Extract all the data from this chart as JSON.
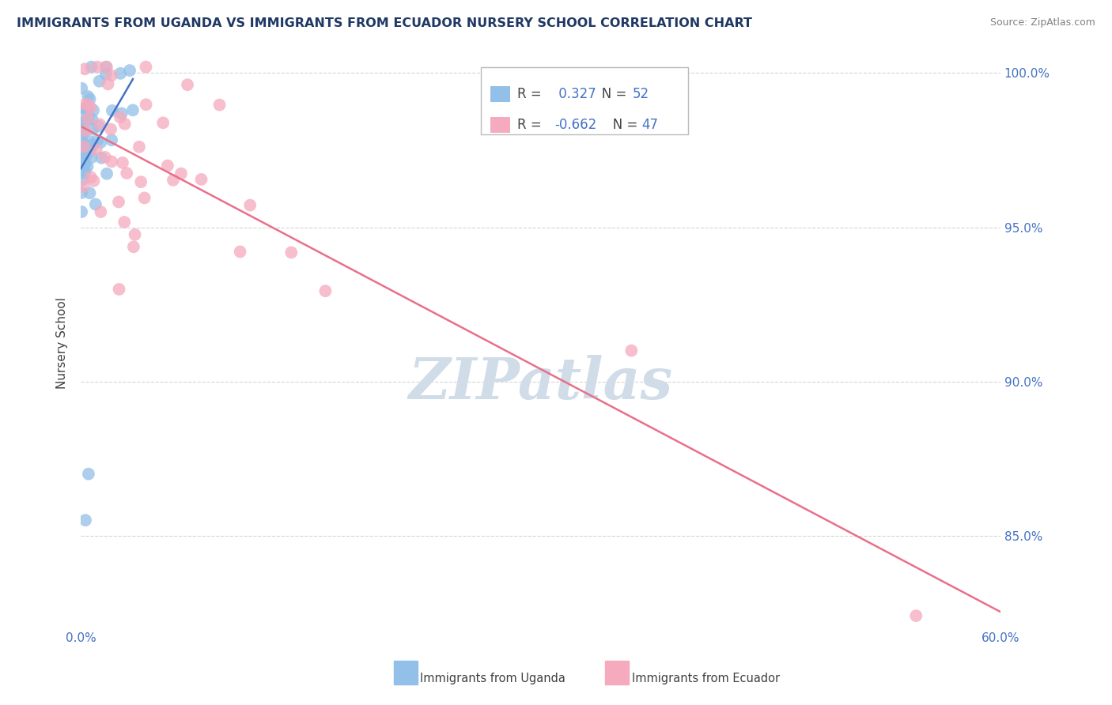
{
  "title": "IMMIGRANTS FROM UGANDA VS IMMIGRANTS FROM ECUADOR NURSERY SCHOOL CORRELATION CHART",
  "source": "Source: ZipAtlas.com",
  "ylabel": "Nursery School",
  "xlim": [
    0.0,
    0.6
  ],
  "ylim": [
    0.82,
    1.005
  ],
  "x_tick_positions": [
    0.0,
    0.1,
    0.2,
    0.3,
    0.4,
    0.5,
    0.6
  ],
  "x_tick_labels": [
    "0.0%",
    "",
    "",
    "",
    "",
    "",
    "60.0%"
  ],
  "y_tick_positions": [
    0.85,
    0.9,
    0.95,
    1.0
  ],
  "y_tick_labels": [
    "85.0%",
    "90.0%",
    "95.0%",
    "100.0%"
  ],
  "uganda_R": 0.327,
  "uganda_N": 52,
  "ecuador_R": -0.662,
  "ecuador_N": 47,
  "uganda_color": "#92C0E8",
  "ecuador_color": "#F5AABE",
  "uganda_line_color": "#4472C4",
  "ecuador_line_color": "#E8708A",
  "grid_color": "#CCCCCC",
  "title_color": "#1F3864",
  "source_color": "#808080",
  "tick_color": "#4472C4",
  "watermark_color": "#D0DCE8"
}
